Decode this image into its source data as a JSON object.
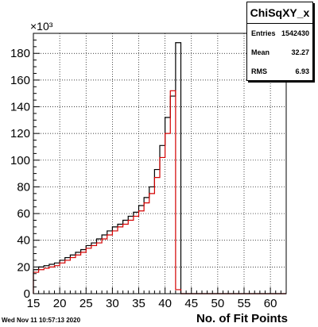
{
  "stats_box": {
    "title": "ChiSqXY_x",
    "rows": [
      {
        "key": "Entries",
        "value": "1542430"
      },
      {
        "key": "Mean",
        "value": "32.27"
      },
      {
        "key": "RMS",
        "value": "6.93"
      }
    ]
  },
  "footer": {
    "date": "Wed Nov 11 10:57:13 2020"
  },
  "chart_data": {
    "type": "histogram",
    "xlabel": "No. of Fit Points",
    "ylabel": "",
    "y_multiplier": "×10³",
    "xlim": [
      15,
      63
    ],
    "ylim": [
      0,
      195
    ],
    "grid": true,
    "x_ticks": [
      15,
      20,
      25,
      30,
      35,
      40,
      45,
      50,
      55,
      60
    ],
    "y_ticks": [
      0,
      20,
      40,
      60,
      80,
      100,
      120,
      140,
      160,
      180
    ],
    "bin_edges": [
      15,
      16,
      17,
      18,
      19,
      20,
      21,
      22,
      23,
      24,
      25,
      26,
      27,
      28,
      29,
      30,
      31,
      32,
      33,
      34,
      35,
      36,
      37,
      38,
      39,
      40,
      41,
      42,
      43,
      44,
      45,
      46,
      47,
      48,
      49,
      50,
      51,
      52,
      53,
      54,
      55,
      56,
      57,
      58,
      59,
      60,
      61,
      62,
      63
    ],
    "series": [
      {
        "color": "#000000",
        "values": [
          18,
          20,
          21,
          22,
          23,
          25,
          27,
          29,
          31,
          33,
          36,
          38,
          41,
          44,
          47,
          50,
          52,
          55,
          58,
          61,
          66,
          72,
          80,
          93,
          111,
          132,
          148,
          188,
          0,
          0,
          0,
          0,
          0,
          0,
          0,
          0,
          0,
          0,
          0,
          0,
          0,
          0,
          0,
          0,
          0,
          0,
          0,
          0
        ]
      },
      {
        "color": "#d40000",
        "values": [
          16,
          18,
          19,
          20,
          21,
          23,
          25,
          27,
          29,
          31,
          34,
          36,
          38,
          41,
          44,
          47,
          50,
          52,
          55,
          58,
          62,
          68,
          75,
          87,
          102,
          120,
          152,
          3,
          0,
          0,
          0,
          0,
          0,
          0,
          0,
          0,
          0,
          0,
          0,
          0,
          0,
          0,
          0,
          0,
          0,
          0,
          0,
          0
        ]
      }
    ]
  }
}
